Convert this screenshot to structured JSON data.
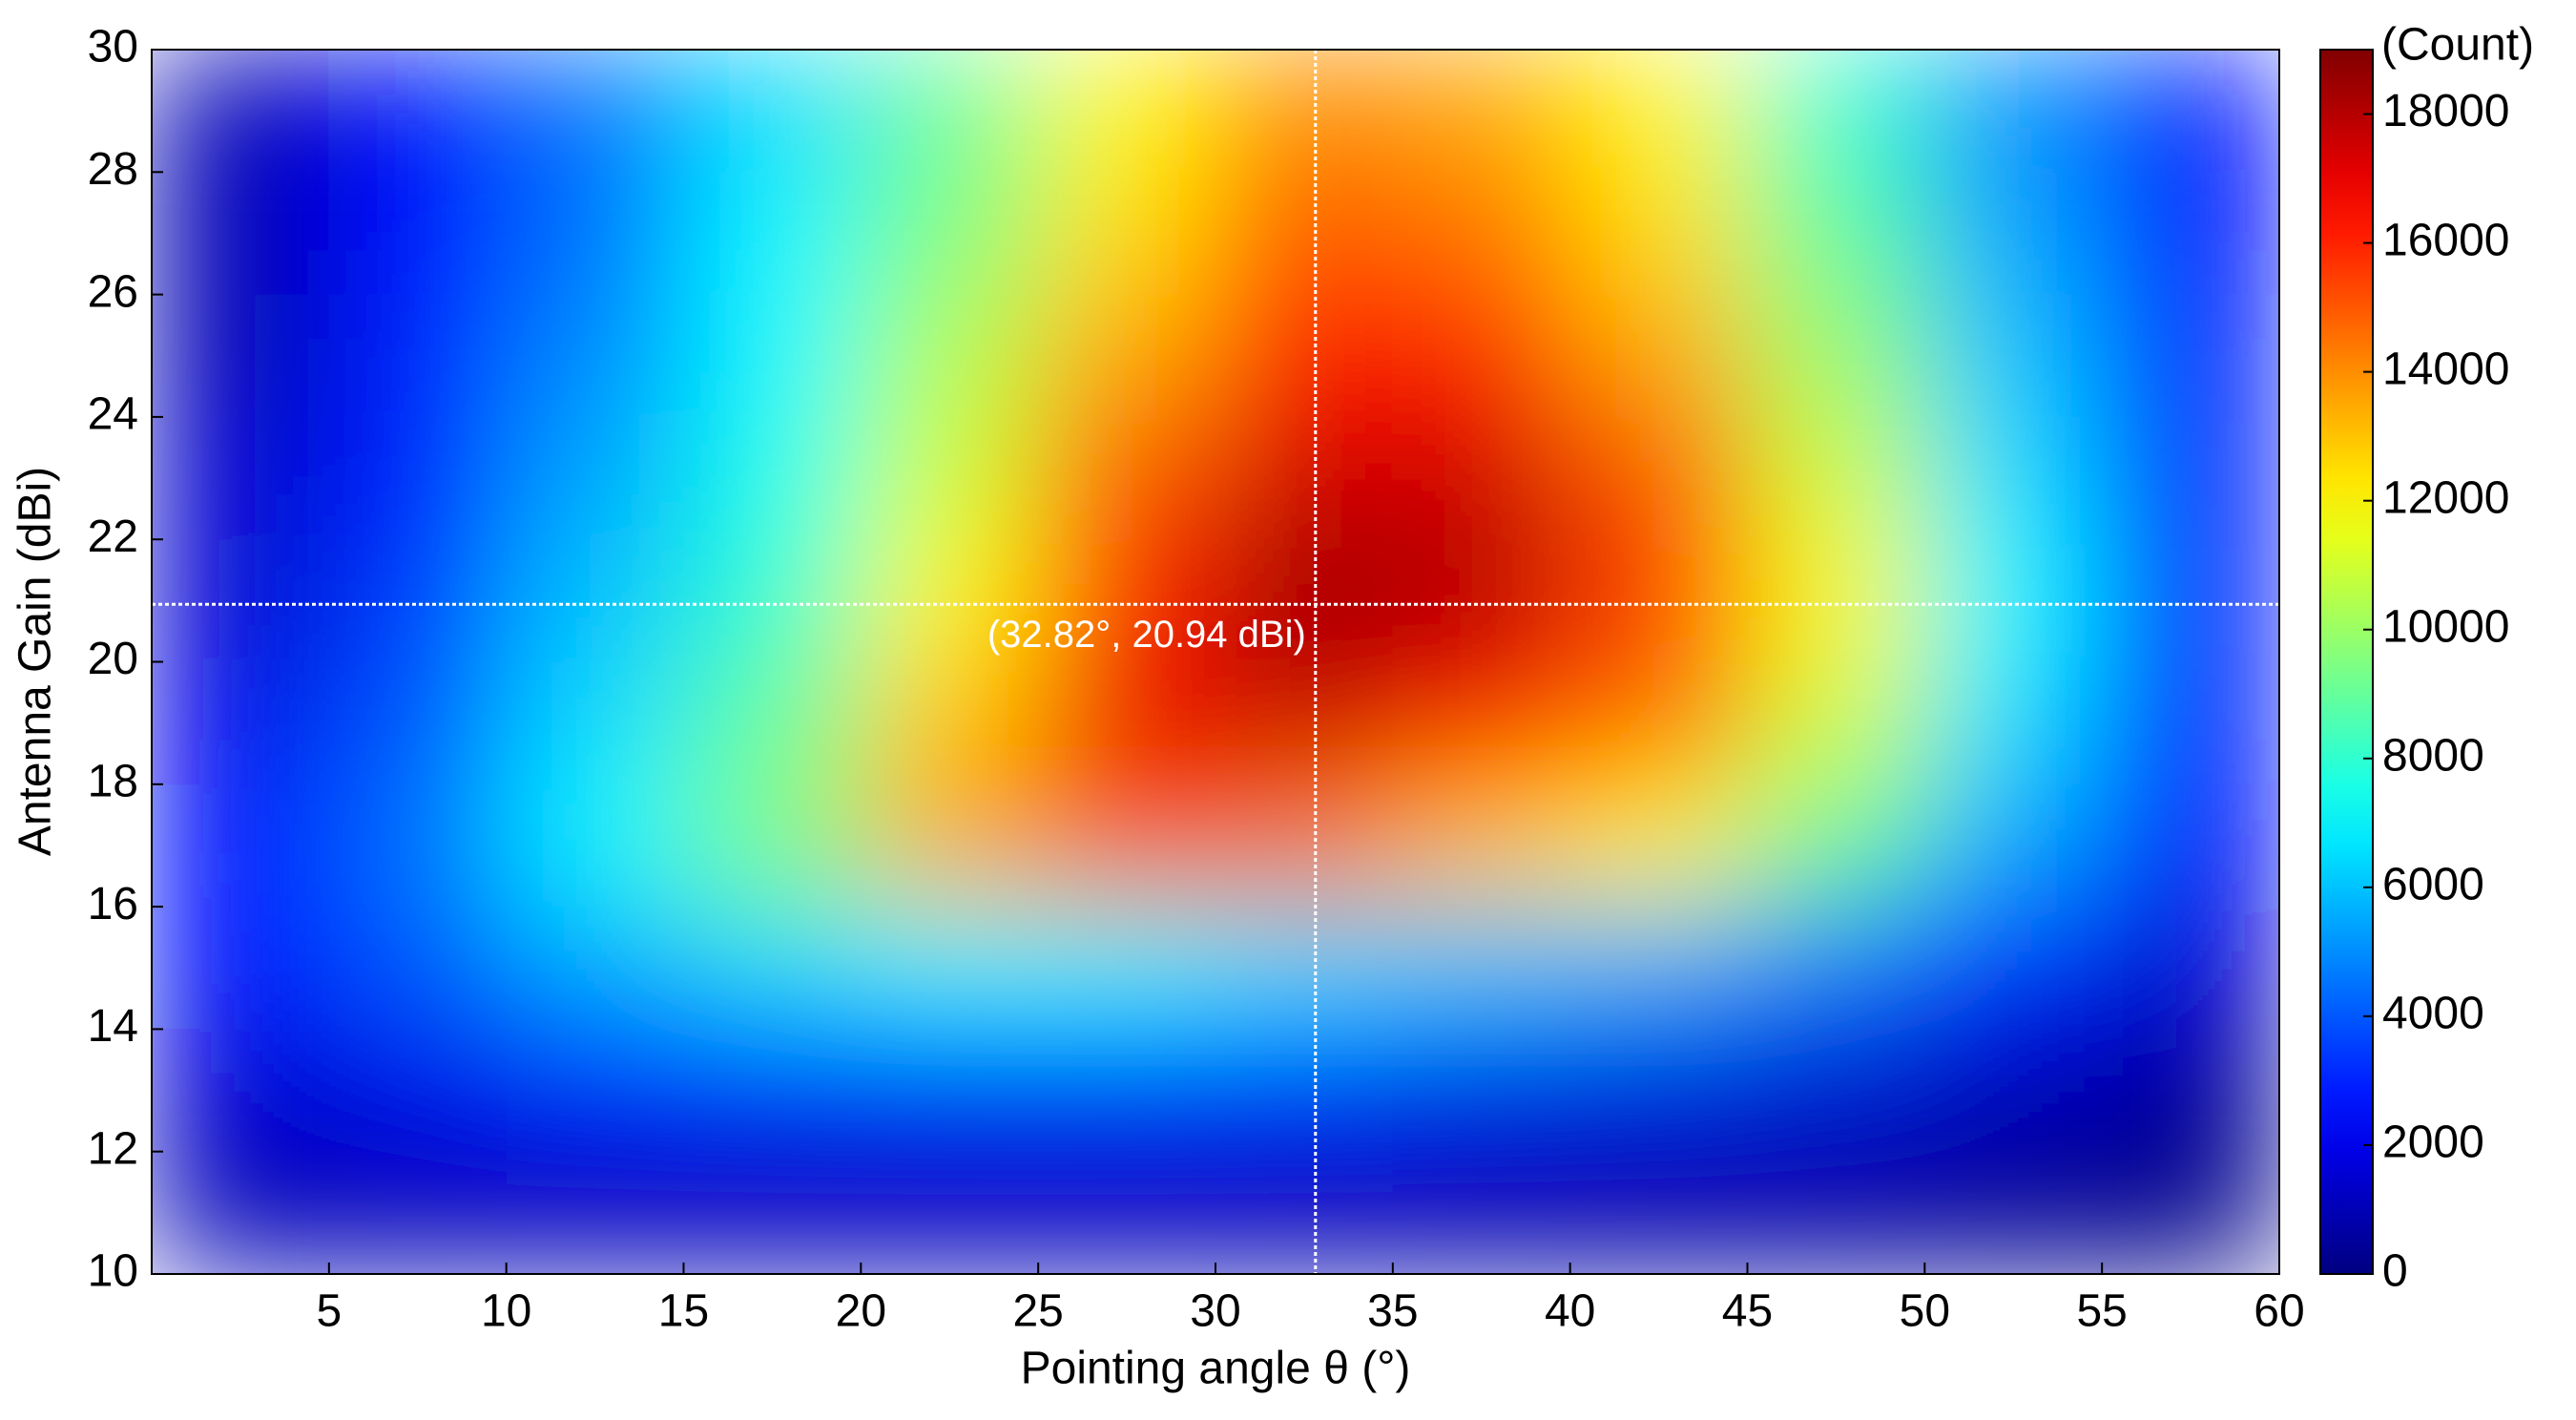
{
  "chart_data": {
    "type": "heatmap",
    "xlabel": "Pointing angle θ (°)",
    "ylabel": "Antenna Gain (dBi)",
    "colorbar_label": "(Count)",
    "x": [
      2.5,
      7.5,
      12.5,
      17.5,
      22.5,
      27.5,
      32.5,
      37.5,
      42.5,
      47.5,
      52.5,
      57.5
    ],
    "y": [
      29,
      27,
      25,
      23,
      21,
      19,
      17,
      15,
      13,
      11
    ],
    "z": [
      [
        1000,
        2500,
        4500,
        6500,
        9000,
        12000,
        14000,
        13500,
        12000,
        8000,
        5000,
        2500
      ],
      [
        1000,
        2500,
        4500,
        7000,
        9500,
        12500,
        15000,
        14500,
        12500,
        9000,
        5500,
        2500
      ],
      [
        1000,
        3000,
        5000,
        7000,
        10500,
        13500,
        16500,
        16000,
        13500,
        10000,
        6000,
        3000
      ],
      [
        1500,
        3000,
        5500,
        7500,
        11000,
        15000,
        17500,
        17500,
        15000,
        11000,
        6500,
        3000
      ],
      [
        1500,
        3500,
        6000,
        8000,
        12000,
        16000,
        18500,
        18000,
        15500,
        12000,
        7000,
        3000
      ],
      [
        2000,
        4000,
        6500,
        9000,
        13000,
        17000,
        17500,
        16500,
        14500,
        11000,
        6500,
        3000
      ],
      [
        2500,
        4500,
        7000,
        9500,
        13500,
        15000,
        14500,
        13000,
        12000,
        9000,
        5500,
        2500
      ],
      [
        2500,
        4000,
        5500,
        6500,
        7000,
        7000,
        6500,
        6000,
        5500,
        4500,
        3000,
        1500
      ],
      [
        1500,
        2000,
        2500,
        2500,
        2500,
        2500,
        2500,
        2000,
        1800,
        1500,
        1000,
        500
      ],
      [
        1000,
        1000,
        1000,
        1000,
        1000,
        1000,
        900,
        800,
        700,
        600,
        400,
        200
      ]
    ],
    "xlim": [
      0,
      60
    ],
    "xticks": [
      5,
      10,
      15,
      20,
      25,
      30,
      35,
      40,
      45,
      50,
      55,
      60
    ],
    "ylim": [
      10,
      30
    ],
    "yticks": [
      10,
      12,
      14,
      16,
      18,
      20,
      22,
      24,
      26,
      28,
      30
    ],
    "clim": [
      0,
      19000
    ],
    "cticks": [
      0,
      2000,
      4000,
      6000,
      8000,
      10000,
      12000,
      14000,
      16000,
      18000
    ],
    "colormap": "jet",
    "marker": {
      "x": 32.82,
      "y": 20.94,
      "label": "(32.82°, 20.94 dBi)",
      "color": "#ffffff"
    }
  }
}
